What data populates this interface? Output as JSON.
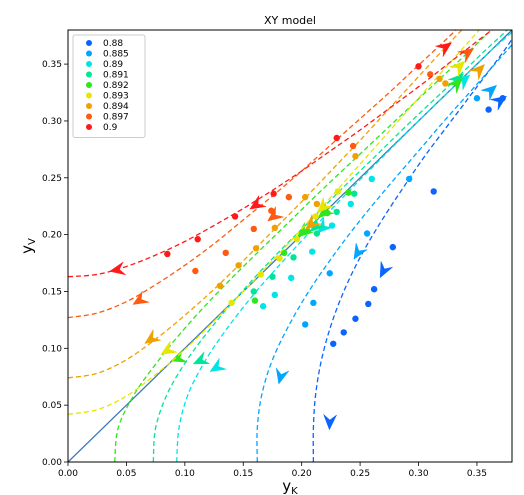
{
  "chart_data": {
    "type": "line",
    "title": "XY model",
    "xlabel": "y",
    "xlabel_sub": "K",
    "ylabel": "y",
    "ylabel_sub": "V",
    "xlim": [
      0,
      0.38
    ],
    "ylim": [
      0,
      0.38
    ],
    "xticks": [
      "0.00",
      "0.05",
      "0.10",
      "0.15",
      "0.20",
      "0.25",
      "0.30",
      "0.35"
    ],
    "yticks": [
      "0.00",
      "0.05",
      "0.10",
      "0.15",
      "0.20",
      "0.25",
      "0.30",
      "0.35"
    ],
    "xtick_values": [
      0,
      0.05,
      0.1,
      0.15,
      0.2,
      0.25,
      0.3,
      0.35
    ],
    "ytick_values": [
      0,
      0.05,
      0.1,
      0.15,
      0.2,
      0.25,
      0.3,
      0.35
    ],
    "legend_position": "top-left",
    "diagonal": {
      "x": [
        0,
        0.38
      ],
      "y": [
        0,
        0.38
      ],
      "color": "#3a78b4"
    },
    "series": [
      {
        "name": "0.88",
        "color": "#0a64ff",
        "curve": [
          [
            0.21,
            0.0
          ],
          [
            0.21,
            0.03
          ],
          [
            0.212,
            0.06
          ],
          [
            0.217,
            0.09
          ],
          [
            0.225,
            0.12
          ],
          [
            0.236,
            0.15
          ],
          [
            0.25,
            0.18
          ],
          [
            0.267,
            0.21
          ],
          [
            0.286,
            0.24
          ],
          [
            0.306,
            0.27
          ],
          [
            0.328,
            0.3
          ],
          [
            0.35,
            0.33
          ],
          [
            0.372,
            0.36
          ],
          [
            0.38,
            0.372
          ]
        ],
        "points": [
          [
            0.227,
            0.104
          ],
          [
            0.236,
            0.114
          ],
          [
            0.246,
            0.126
          ],
          [
            0.257,
            0.139
          ],
          [
            0.262,
            0.152
          ],
          [
            0.278,
            0.189
          ],
          [
            0.313,
            0.238
          ],
          [
            0.36,
            0.31
          ],
          [
            0.372,
            0.32
          ]
        ],
        "arrows": [
          {
            "x": 0.37,
            "y": 0.318,
            "dir": [
              1,
              0.7
            ]
          },
          {
            "x": 0.27,
            "y": 0.168,
            "dir": [
              -0.5,
              -1
            ]
          },
          {
            "x": 0.224,
            "y": 0.035,
            "dir": [
              -0.05,
              -1
            ]
          }
        ]
      },
      {
        "name": "0.885",
        "color": "#00a6ff",
        "curve": [
          [
            0.162,
            0.0
          ],
          [
            0.162,
            0.03
          ],
          [
            0.166,
            0.06
          ],
          [
            0.175,
            0.09
          ],
          [
            0.189,
            0.12
          ],
          [
            0.206,
            0.15
          ],
          [
            0.226,
            0.18
          ],
          [
            0.248,
            0.21
          ],
          [
            0.272,
            0.24
          ],
          [
            0.297,
            0.27
          ],
          [
            0.322,
            0.3
          ],
          [
            0.348,
            0.33
          ],
          [
            0.374,
            0.36
          ],
          [
            0.38,
            0.367
          ]
        ],
        "points": [
          [
            0.203,
            0.121
          ],
          [
            0.21,
            0.14
          ],
          [
            0.224,
            0.166
          ],
          [
            0.256,
            0.201
          ],
          [
            0.292,
            0.249
          ],
          [
            0.35,
            0.32
          ]
        ],
        "arrows": [
          {
            "x": 0.362,
            "y": 0.327,
            "dir": [
              0.8,
              0.7
            ]
          },
          {
            "x": 0.248,
            "y": 0.184,
            "dir": [
              -0.6,
              -1
            ]
          },
          {
            "x": 0.182,
            "y": 0.075,
            "dir": [
              -0.25,
              -1
            ]
          }
        ]
      },
      {
        "name": "0.89",
        "color": "#00e4e6",
        "curve": [
          [
            0.093,
            0.0
          ],
          [
            0.095,
            0.03
          ],
          [
            0.103,
            0.06
          ],
          [
            0.118,
            0.09
          ],
          [
            0.138,
            0.12
          ],
          [
            0.161,
            0.15
          ],
          [
            0.187,
            0.18
          ],
          [
            0.214,
            0.21
          ],
          [
            0.242,
            0.24
          ],
          [
            0.271,
            0.27
          ],
          [
            0.3,
            0.3
          ],
          [
            0.33,
            0.33
          ],
          [
            0.36,
            0.36
          ],
          [
            0.38,
            0.378
          ]
        ],
        "points": [
          [
            0.167,
            0.137
          ],
          [
            0.177,
            0.147
          ],
          [
            0.191,
            0.162
          ],
          [
            0.209,
            0.185
          ],
          [
            0.226,
            0.208
          ],
          [
            0.242,
            0.227
          ],
          [
            0.26,
            0.249
          ]
        ],
        "arrows": [
          {
            "x": 0.339,
            "y": 0.336,
            "dir": [
              1,
              0.9
            ]
          },
          {
            "x": 0.218,
            "y": 0.206,
            "dir": [
              -0.85,
              -0.8
            ]
          },
          {
            "x": 0.127,
            "y": 0.083,
            "dir": [
              -0.8,
              -0.5
            ]
          }
        ]
      },
      {
        "name": "0.891",
        "color": "#00e696",
        "curve": [
          [
            0.073,
            0.0
          ],
          [
            0.075,
            0.03
          ],
          [
            0.085,
            0.06
          ],
          [
            0.102,
            0.09
          ],
          [
            0.124,
            0.12
          ],
          [
            0.149,
            0.15
          ],
          [
            0.176,
            0.18
          ],
          [
            0.205,
            0.21
          ],
          [
            0.234,
            0.24
          ],
          [
            0.264,
            0.27
          ],
          [
            0.294,
            0.3
          ],
          [
            0.325,
            0.33
          ],
          [
            0.355,
            0.36
          ],
          [
            0.376,
            0.38
          ]
        ],
        "points": [
          [
            0.159,
            0.15
          ],
          [
            0.175,
            0.163
          ],
          [
            0.193,
            0.18
          ],
          [
            0.213,
            0.201
          ],
          [
            0.23,
            0.22
          ],
          [
            0.245,
            0.236
          ]
        ],
        "arrows": [
          {
            "x": 0.334,
            "y": 0.337,
            "dir": [
              0.9,
              0.9
            ]
          },
          {
            "x": 0.212,
            "y": 0.207,
            "dir": [
              -0.85,
              -0.75
            ]
          },
          {
            "x": 0.113,
            "y": 0.089,
            "dir": [
              -0.9,
              -0.4
            ]
          }
        ]
      },
      {
        "name": "0.892",
        "color": "#2de61e",
        "curve": [
          [
            0.04,
            0.0
          ],
          [
            0.043,
            0.03
          ],
          [
            0.057,
            0.06
          ],
          [
            0.078,
            0.09
          ],
          [
            0.102,
            0.12
          ],
          [
            0.129,
            0.15
          ],
          [
            0.158,
            0.18
          ],
          [
            0.188,
            0.21
          ],
          [
            0.218,
            0.24
          ],
          [
            0.249,
            0.27
          ],
          [
            0.28,
            0.3
          ],
          [
            0.311,
            0.33
          ],
          [
            0.342,
            0.36
          ],
          [
            0.362,
            0.38
          ]
        ],
        "points": [
          [
            0.16,
            0.142
          ],
          [
            0.185,
            0.184
          ],
          [
            0.205,
            0.203
          ],
          [
            0.222,
            0.219
          ],
          [
            0.24,
            0.237
          ]
        ],
        "arrows": [
          {
            "x": 0.333,
            "y": 0.333,
            "dir": [
              0.9,
              0.95
            ]
          },
          {
            "x": 0.219,
            "y": 0.219,
            "dir": [
              -0.9,
              -0.75
            ]
          },
          {
            "x": 0.201,
            "y": 0.202,
            "dir": [
              -0.9,
              -0.75
            ]
          },
          {
            "x": 0.094,
            "y": 0.091,
            "dir": [
              -0.95,
              -0.35
            ]
          }
        ]
      },
      {
        "name": "0.893",
        "color": "#e6e600",
        "curve": [
          [
            0.0,
            0.042
          ],
          [
            0.025,
            0.046
          ],
          [
            0.05,
            0.058
          ],
          [
            0.075,
            0.077
          ],
          [
            0.1,
            0.099
          ],
          [
            0.125,
            0.124
          ],
          [
            0.15,
            0.15
          ],
          [
            0.175,
            0.177
          ],
          [
            0.2,
            0.205
          ],
          [
            0.225,
            0.233
          ],
          [
            0.25,
            0.262
          ],
          [
            0.275,
            0.291
          ],
          [
            0.3,
            0.32
          ],
          [
            0.325,
            0.349
          ],
          [
            0.352,
            0.38
          ]
        ],
        "points": [
          [
            0.14,
            0.14
          ],
          [
            0.165,
            0.165
          ],
          [
            0.181,
            0.179
          ],
          [
            0.196,
            0.196
          ],
          [
            0.212,
            0.216
          ],
          [
            0.231,
            0.238
          ]
        ],
        "arrows": [
          {
            "x": 0.335,
            "y": 0.348,
            "dir": [
              0.9,
              0.85
            ]
          },
          {
            "x": 0.218,
            "y": 0.224,
            "dir": [
              -0.85,
              -0.85
            ]
          },
          {
            "x": 0.085,
            "y": 0.098,
            "dir": [
              -0.9,
              -0.55
            ]
          }
        ]
      },
      {
        "name": "0.894",
        "color": "#f0a000",
        "curve": [
          [
            0.0,
            0.074
          ],
          [
            0.025,
            0.078
          ],
          [
            0.05,
            0.09
          ],
          [
            0.075,
            0.108
          ],
          [
            0.1,
            0.129
          ],
          [
            0.125,
            0.152
          ],
          [
            0.15,
            0.177
          ],
          [
            0.175,
            0.203
          ],
          [
            0.2,
            0.229
          ],
          [
            0.225,
            0.256
          ],
          [
            0.25,
            0.283
          ],
          [
            0.275,
            0.311
          ],
          [
            0.3,
            0.339
          ],
          [
            0.325,
            0.367
          ],
          [
            0.337,
            0.38
          ]
        ],
        "points": [
          [
            0.13,
            0.155
          ],
          [
            0.146,
            0.173
          ],
          [
            0.161,
            0.188
          ],
          [
            0.177,
            0.206
          ],
          [
            0.203,
            0.233
          ],
          [
            0.213,
            0.227
          ],
          [
            0.246,
            0.269
          ],
          [
            0.318,
            0.337
          ],
          [
            0.323,
            0.333
          ]
        ],
        "arrows": [
          {
            "x": 0.352,
            "y": 0.345,
            "dir": [
              0.85,
              0.85
            ]
          },
          {
            "x": 0.208,
            "y": 0.209,
            "dir": [
              -0.9,
              -0.85
            ]
          },
          {
            "x": 0.071,
            "y": 0.108,
            "dir": [
              -0.85,
              -0.6
            ]
          }
        ]
      },
      {
        "name": "0.897",
        "color": "#ff5a0f",
        "curve": [
          [
            0.0,
            0.127
          ],
          [
            0.025,
            0.131
          ],
          [
            0.05,
            0.141
          ],
          [
            0.075,
            0.156
          ],
          [
            0.1,
            0.173
          ],
          [
            0.125,
            0.192
          ],
          [
            0.15,
            0.213
          ],
          [
            0.175,
            0.234
          ],
          [
            0.2,
            0.256
          ],
          [
            0.225,
            0.279
          ],
          [
            0.25,
            0.302
          ],
          [
            0.275,
            0.325
          ],
          [
            0.3,
            0.349
          ],
          [
            0.325,
            0.373
          ],
          [
            0.332,
            0.38
          ]
        ],
        "points": [
          [
            0.109,
            0.168
          ],
          [
            0.135,
            0.184
          ],
          [
            0.159,
            0.205
          ],
          [
            0.174,
            0.221
          ],
          [
            0.189,
            0.233
          ],
          [
            0.244,
            0.278
          ],
          [
            0.31,
            0.341
          ]
        ],
        "arrows": [
          {
            "x": 0.342,
            "y": 0.36,
            "dir": [
              0.85,
              0.6
            ]
          },
          {
            "x": 0.176,
            "y": 0.216,
            "dir": [
              -0.9,
              -0.7
            ]
          },
          {
            "x": 0.061,
            "y": 0.142,
            "dir": [
              -0.9,
              -0.55
            ]
          }
        ]
      },
      {
        "name": "0.9",
        "color": "#ff1a1a",
        "curve": [
          [
            0.0,
            0.163
          ],
          [
            0.025,
            0.165
          ],
          [
            0.05,
            0.172
          ],
          [
            0.075,
            0.182
          ],
          [
            0.1,
            0.194
          ],
          [
            0.125,
            0.208
          ],
          [
            0.15,
            0.223
          ],
          [
            0.175,
            0.239
          ],
          [
            0.2,
            0.256
          ],
          [
            0.225,
            0.274
          ],
          [
            0.25,
            0.292
          ],
          [
            0.275,
            0.311
          ],
          [
            0.3,
            0.33
          ],
          [
            0.325,
            0.35
          ],
          [
            0.35,
            0.37
          ],
          [
            0.363,
            0.38
          ]
        ],
        "points": [
          [
            0.085,
            0.183
          ],
          [
            0.111,
            0.196
          ],
          [
            0.143,
            0.216
          ],
          [
            0.176,
            0.236
          ],
          [
            0.23,
            0.285
          ],
          [
            0.3,
            0.348
          ]
        ],
        "arrows": [
          {
            "x": 0.323,
            "y": 0.365,
            "dir": [
              0.85,
              0.6
            ]
          },
          {
            "x": 0.161,
            "y": 0.226,
            "dir": [
              -0.85,
              -0.55
            ]
          },
          {
            "x": 0.042,
            "y": 0.169,
            "dir": [
              -1,
              -0.2
            ]
          }
        ]
      }
    ]
  }
}
